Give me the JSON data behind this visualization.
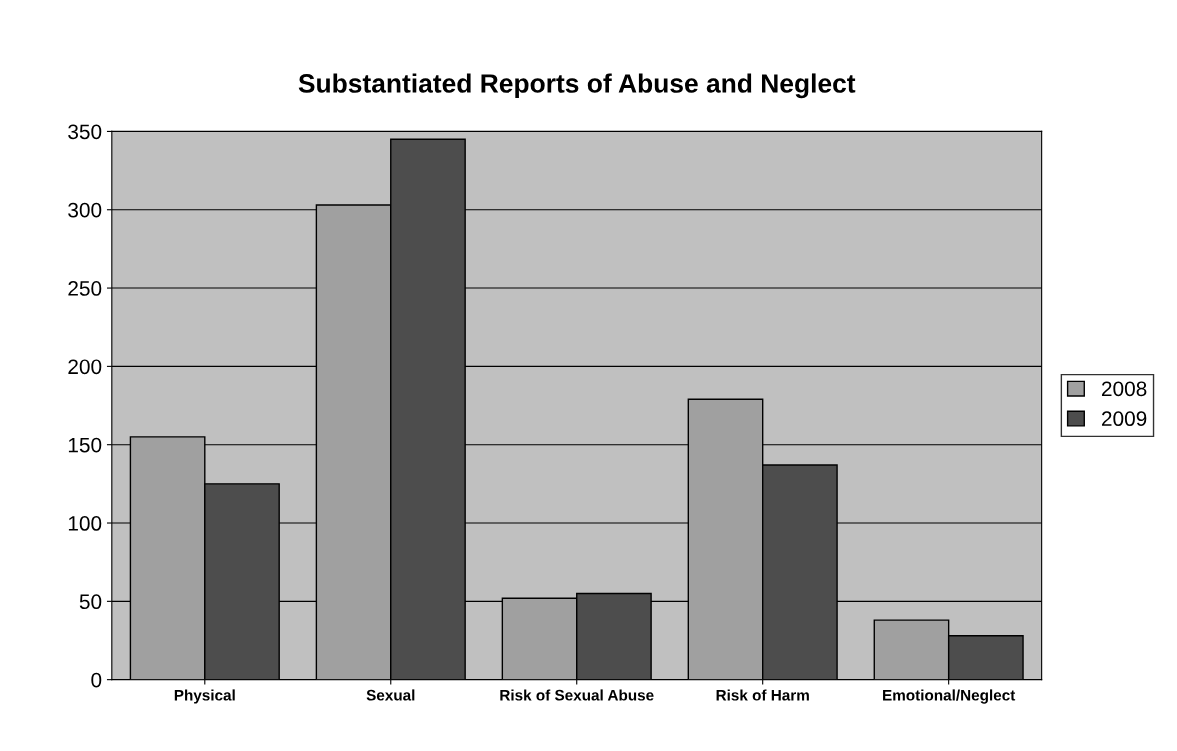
{
  "chart_data": {
    "type": "bar",
    "title": "Substantiated Reports of Abuse and Neglect",
    "categories": [
      "Physical",
      "Sexual",
      "Risk of Sexual Abuse",
      "Risk of Harm",
      "Emotional/Neglect"
    ],
    "series": [
      {
        "name": "2008",
        "color": "#a0a0a0",
        "values": [
          155,
          303,
          52,
          179,
          38
        ]
      },
      {
        "name": "2009",
        "color": "#4d4d4d",
        "values": [
          125,
          345,
          55,
          137,
          28
        ]
      }
    ],
    "ylim": [
      0,
      350
    ],
    "yticks": [
      0,
      50,
      100,
      150,
      200,
      250,
      300,
      350
    ],
    "grid": "y",
    "legend": "right"
  }
}
